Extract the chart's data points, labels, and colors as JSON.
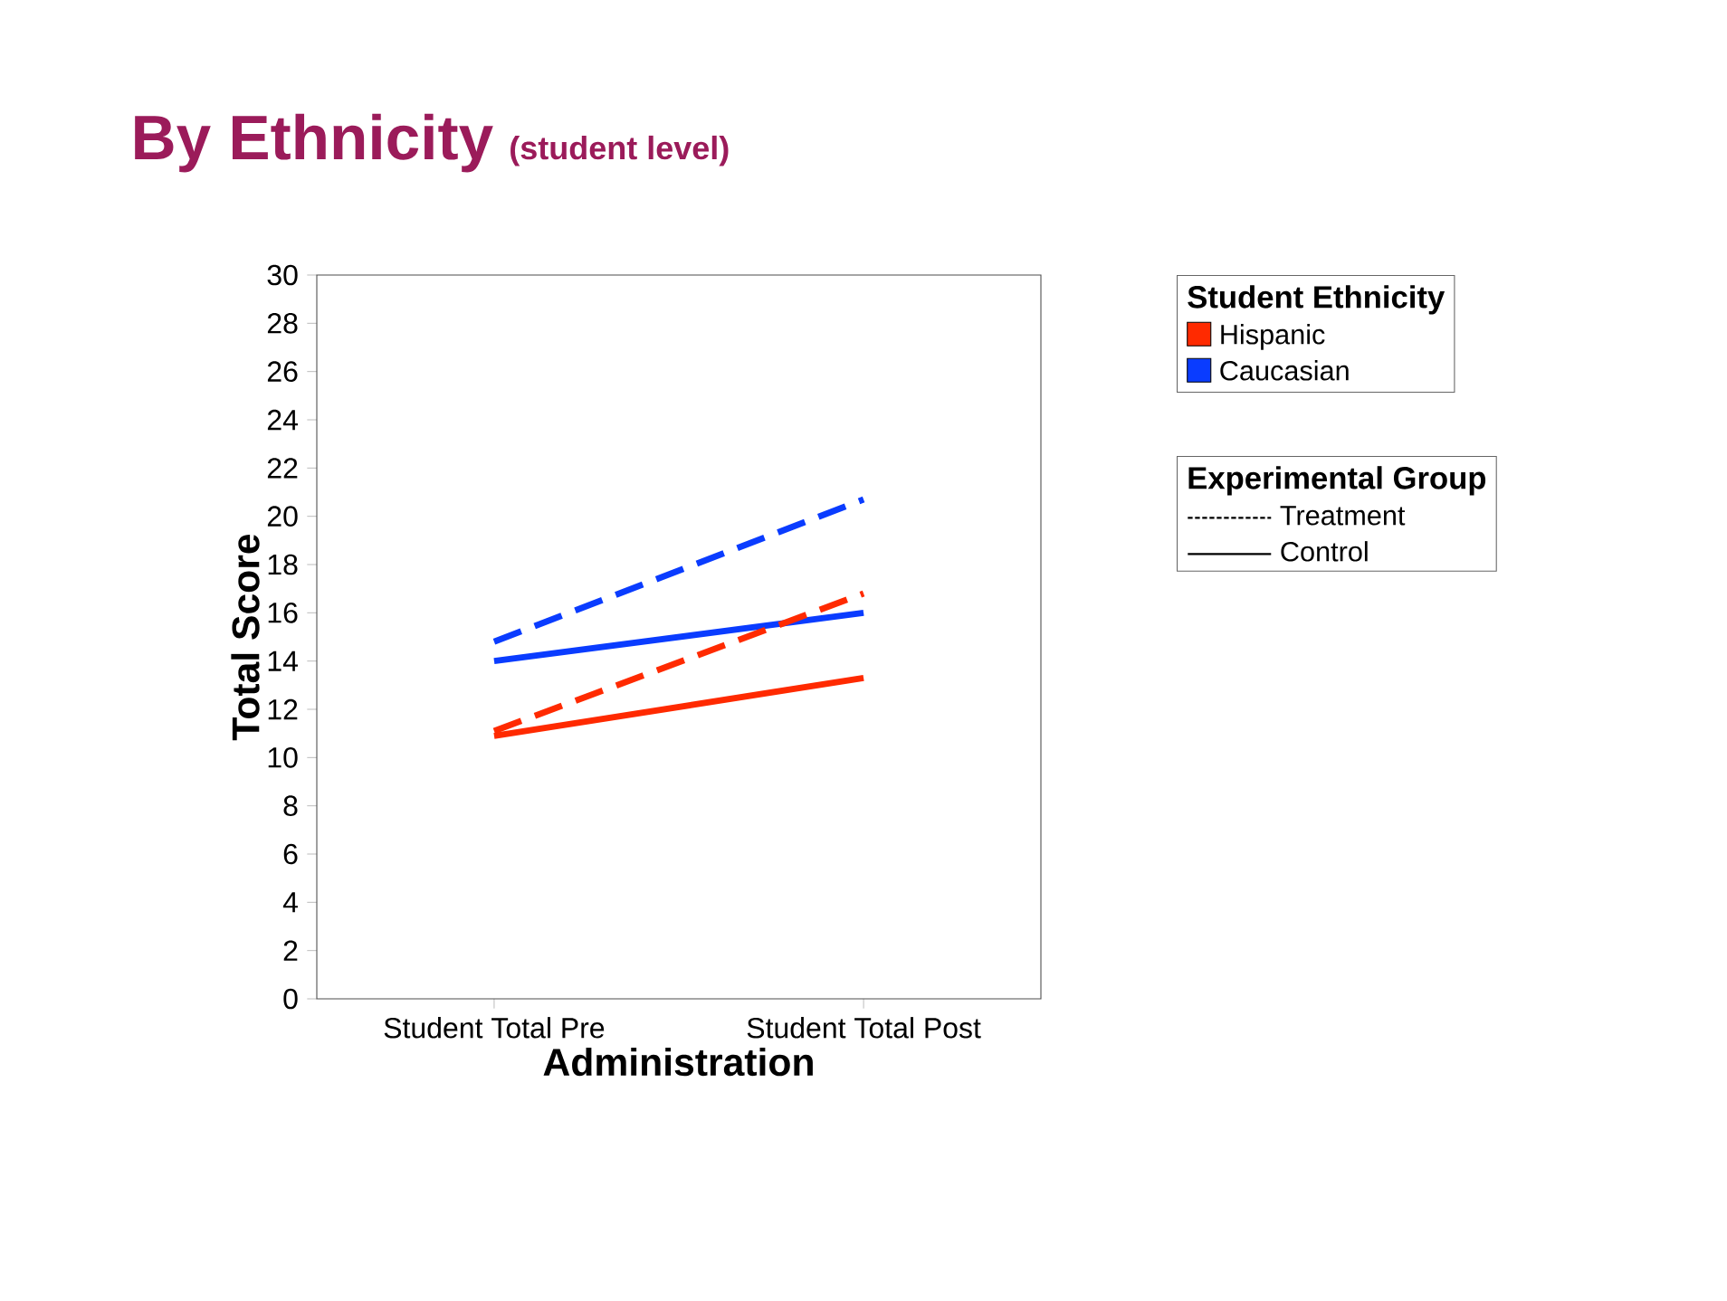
{
  "chart_data": {
    "type": "line",
    "title": "By Ethnicity",
    "subtitle": "(student level)",
    "xlabel": "Administration",
    "ylabel": "Total Score",
    "legend_title": "Student Ethnicity",
    "legend": "right",
    "categories": [
      "Student Total Pre",
      "Student Total Post"
    ],
    "ylim": [
      0,
      30
    ],
    "yticks": [
      0,
      2,
      4,
      6,
      8,
      10,
      12,
      14,
      16,
      18,
      20,
      22,
      24,
      26,
      28,
      30
    ],
    "grid": false,
    "marker": "none",
    "series": [
      {
        "name": "Hispanic",
        "color": "#ff2a00",
        "line_style": "solid",
        "values": [
          10.9,
          13.3
        ]
      },
      {
        "name": "Caucasian",
        "color": "#0a3cff",
        "line_style": "solid",
        "values": [
          14.0,
          16.0
        ]
      },
      {
        "color": "#ff2a00",
        "line_style": "dashed",
        "values": [
          11.1,
          16.8
        ]
      },
      {
        "color": "#0a3cff",
        "line_style": "dashed",
        "values": [
          14.8,
          20.7
        ]
      }
    ],
    "annotations": [
      "Experimental Group",
      "Treatment",
      "Control"
    ]
  }
}
